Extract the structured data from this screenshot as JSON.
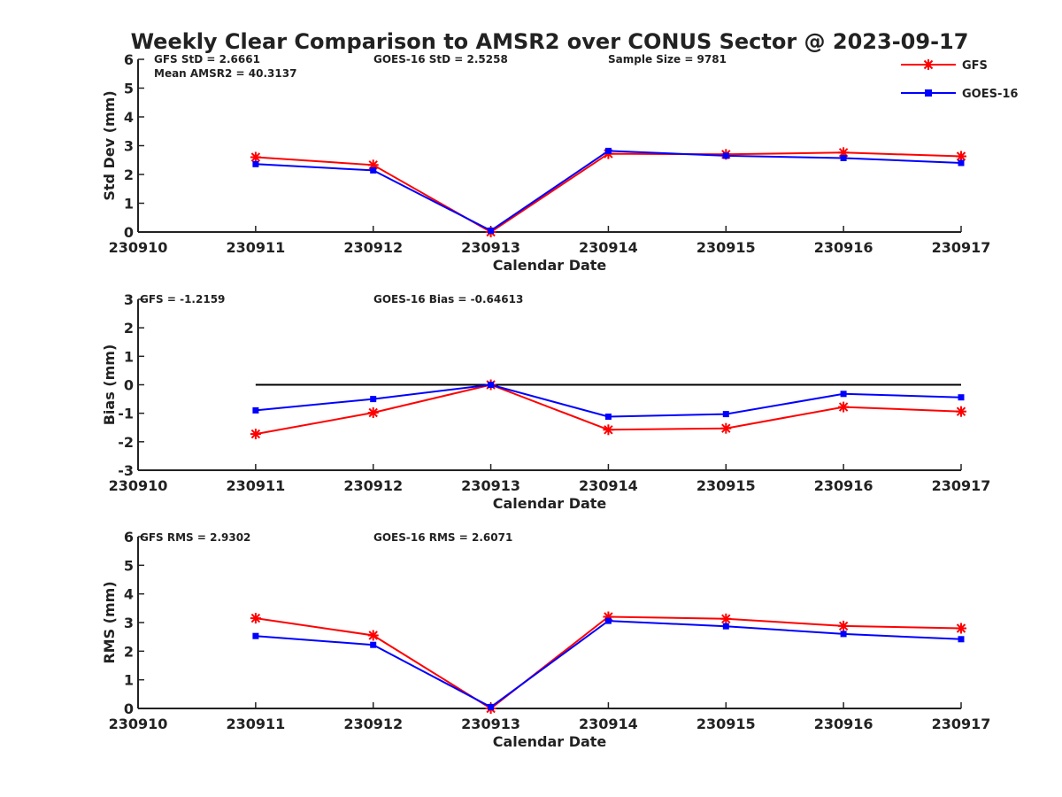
{
  "figure": {
    "title": "Weekly Clear Comparison to AMSR2 over CONUS Sector @ 2023-09-17"
  },
  "legend": {
    "placement": "top-right",
    "items": [
      {
        "label": "GFS",
        "color": "#ff0000",
        "marker": "asterisk"
      },
      {
        "label": "GOES-16",
        "color": "#0000ff",
        "marker": "square"
      }
    ]
  },
  "chart_data": [
    {
      "type": "line",
      "xlabel": "Calendar Date",
      "ylabel": "Std Dev (mm)",
      "x_ticks": [
        "230910",
        "230911",
        "230912",
        "230913",
        "230914",
        "230915",
        "230916",
        "230917"
      ],
      "xlim": [
        "230910",
        "230917"
      ],
      "ylim": [
        0,
        6
      ],
      "y_ticks": [
        "0",
        "1",
        "2",
        "3",
        "4",
        "5",
        "6"
      ],
      "grid": false,
      "reference_zero_line": false,
      "annotations": [
        "GFS StD = 2.6661",
        "GOES-16 StD = 2.5258",
        "Sample Size = 9781",
        "Mean AMSR2 = 40.3137"
      ],
      "x": [
        "230911",
        "230912",
        "230913",
        "230914",
        "230915",
        "230916",
        "230917"
      ],
      "series": [
        {
          "name": "GFS",
          "color": "#ff0000",
          "marker": "asterisk",
          "values": [
            2.6,
            2.33,
            0.0,
            2.72,
            2.7,
            2.76,
            2.63
          ]
        },
        {
          "name": "GOES-16",
          "color": "#0000ff",
          "marker": "square",
          "values": [
            2.36,
            2.14,
            0.05,
            2.82,
            2.65,
            2.57,
            2.4
          ]
        }
      ]
    },
    {
      "type": "line",
      "xlabel": "Calendar Date",
      "ylabel": "Bias (mm)",
      "x_ticks": [
        "230910",
        "230911",
        "230912",
        "230913",
        "230914",
        "230915",
        "230916",
        "230917"
      ],
      "xlim": [
        "230910",
        "230917"
      ],
      "ylim": [
        -3,
        3
      ],
      "y_ticks": [
        "-3",
        "-2",
        "-1",
        "0",
        "1",
        "2",
        "3"
      ],
      "grid": false,
      "reference_zero_line": true,
      "annotations": [
        "GFS = -1.2159",
        "GOES-16 Bias  = -0.64613"
      ],
      "x": [
        "230911",
        "230912",
        "230913",
        "230914",
        "230915",
        "230916",
        "230917"
      ],
      "series": [
        {
          "name": "GFS",
          "color": "#ff0000",
          "marker": "asterisk",
          "values": [
            -1.73,
            -0.98,
            0.0,
            -1.58,
            -1.53,
            -0.78,
            -0.94
          ]
        },
        {
          "name": "GOES-16",
          "color": "#0000ff",
          "marker": "square",
          "values": [
            -0.9,
            -0.5,
            0.0,
            -1.12,
            -1.03,
            -0.32,
            -0.44
          ]
        }
      ]
    },
    {
      "type": "line",
      "xlabel": "Calendar Date",
      "ylabel": "RMS (mm)",
      "x_ticks": [
        "230910",
        "230911",
        "230912",
        "230913",
        "230914",
        "230915",
        "230916",
        "230917"
      ],
      "xlim": [
        "230910",
        "230917"
      ],
      "ylim": [
        0,
        6
      ],
      "y_ticks": [
        "0",
        "1",
        "2",
        "3",
        "4",
        "5",
        "6"
      ],
      "grid": false,
      "reference_zero_line": false,
      "annotations": [
        "GFS RMS = 2.9302",
        "GOES-16 RMS = 2.6071"
      ],
      "x": [
        "230911",
        "230912",
        "230913",
        "230914",
        "230915",
        "230916",
        "230917"
      ],
      "series": [
        {
          "name": "GFS",
          "color": "#ff0000",
          "marker": "asterisk",
          "values": [
            3.15,
            2.55,
            0.0,
            3.2,
            3.13,
            2.88,
            2.8
          ]
        },
        {
          "name": "GOES-16",
          "color": "#0000ff",
          "marker": "square",
          "values": [
            2.53,
            2.22,
            0.05,
            3.06,
            2.87,
            2.6,
            2.42
          ]
        }
      ]
    }
  ]
}
